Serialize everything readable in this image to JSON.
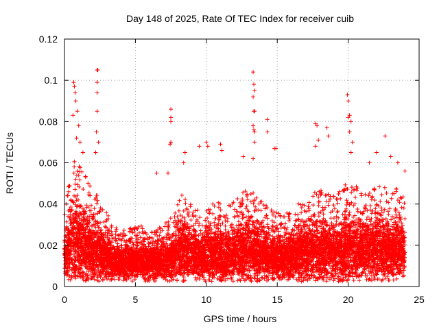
{
  "chart_data": {
    "type": "scatter",
    "title": "Day 148 of 2025, Rate Of TEC Index for receiver cuib",
    "xlabel": "GPS time / hours",
    "ylabel": "ROTI / TECUs",
    "xlim": [
      0,
      25
    ],
    "ylim": [
      0,
      0.12
    ],
    "xticks": [
      "0",
      "5",
      "10",
      "15",
      "20",
      "25"
    ],
    "xtick_values": [
      0,
      5,
      10,
      15,
      20,
      25
    ],
    "yticks": [
      "0",
      "0.02",
      "0.04",
      "0.06",
      "0.08",
      "0.1",
      "0.12"
    ],
    "ytick_values": [
      0,
      0.02,
      0.04,
      0.06,
      0.08,
      0.1,
      0.12
    ],
    "grid": true,
    "marker": "+",
    "color": "#ff0000",
    "series": [
      {
        "name": "ROTI",
        "envelope": {
          "x_hours": [
            0.0,
            0.5,
            1.0,
            1.5,
            2.0,
            2.5,
            3.0,
            3.5,
            4.0,
            4.5,
            5.0,
            5.5,
            6.0,
            6.5,
            7.0,
            7.5,
            8.0,
            8.5,
            9.0,
            9.5,
            10.0,
            10.5,
            11.0,
            11.5,
            12.0,
            12.5,
            13.0,
            13.5,
            14.0,
            14.5,
            15.0,
            15.5,
            16.0,
            16.5,
            17.0,
            17.5,
            18.0,
            18.5,
            19.0,
            19.5,
            20.0,
            20.5,
            21.0,
            21.5,
            22.0,
            22.5,
            23.0,
            23.5,
            24.0
          ],
          "typical_max": [
            0.035,
            0.055,
            0.06,
            0.05,
            0.045,
            0.04,
            0.033,
            0.028,
            0.026,
            0.027,
            0.027,
            0.028,
            0.027,
            0.027,
            0.028,
            0.032,
            0.038,
            0.045,
            0.038,
            0.034,
            0.035,
            0.038,
            0.038,
            0.037,
            0.04,
            0.042,
            0.045,
            0.042,
            0.038,
            0.035,
            0.034,
            0.033,
            0.035,
            0.038,
            0.04,
            0.045,
            0.045,
            0.043,
            0.042,
            0.045,
            0.048,
            0.046,
            0.044,
            0.045,
            0.046,
            0.045,
            0.044,
            0.045,
            0.04
          ],
          "typical_min": [
            0.007,
            0.006,
            0.005,
            0.005,
            0.005,
            0.005,
            0.005,
            0.005,
            0.005,
            0.005,
            0.005,
            0.005,
            0.005,
            0.005,
            0.005,
            0.005,
            0.005,
            0.005,
            0.005,
            0.005,
            0.005,
            0.005,
            0.005,
            0.005,
            0.005,
            0.005,
            0.005,
            0.005,
            0.005,
            0.005,
            0.005,
            0.005,
            0.005,
            0.005,
            0.005,
            0.005,
            0.005,
            0.005,
            0.005,
            0.005,
            0.005,
            0.005,
            0.005,
            0.005,
            0.005,
            0.005,
            0.005,
            0.005,
            0.006
          ]
        },
        "notable_points": [
          [
            0.65,
            0.099
          ],
          [
            0.7,
            0.097
          ],
          [
            0.75,
            0.094
          ],
          [
            0.8,
            0.09
          ],
          [
            0.9,
            0.085
          ],
          [
            0.6,
            0.083
          ],
          [
            1.0,
            0.078
          ],
          [
            0.85,
            0.072
          ],
          [
            1.1,
            0.07
          ],
          [
            1.3,
            0.065
          ],
          [
            2.3,
            0.105
          ],
          [
            2.35,
            0.105
          ],
          [
            2.3,
            0.099
          ],
          [
            2.3,
            0.094
          ],
          [
            2.3,
            0.085
          ],
          [
            2.25,
            0.075
          ],
          [
            2.4,
            0.07
          ],
          [
            2.2,
            0.065
          ],
          [
            7.5,
            0.086
          ],
          [
            7.5,
            0.082
          ],
          [
            7.5,
            0.08
          ],
          [
            7.5,
            0.07
          ],
          [
            7.45,
            0.069
          ],
          [
            6.5,
            0.055
          ],
          [
            7.3,
            0.055
          ],
          [
            8.5,
            0.065
          ],
          [
            8.4,
            0.06
          ],
          [
            9.5,
            0.068
          ],
          [
            10.0,
            0.07
          ],
          [
            10.1,
            0.068
          ],
          [
            11.0,
            0.069
          ],
          [
            11.1,
            0.066
          ],
          [
            12.6,
            0.063
          ],
          [
            13.3,
            0.104
          ],
          [
            13.35,
            0.098
          ],
          [
            13.4,
            0.095
          ],
          [
            13.3,
            0.092
          ],
          [
            13.35,
            0.085
          ],
          [
            13.4,
            0.085
          ],
          [
            13.3,
            0.078
          ],
          [
            13.35,
            0.076
          ],
          [
            13.4,
            0.075
          ],
          [
            13.4,
            0.07
          ],
          [
            13.3,
            0.062
          ],
          [
            14.3,
            0.081
          ],
          [
            14.3,
            0.075
          ],
          [
            14.8,
            0.067
          ],
          [
            14.9,
            0.067
          ],
          [
            17.7,
            0.079
          ],
          [
            17.8,
            0.078
          ],
          [
            17.9,
            0.071
          ],
          [
            17.7,
            0.068
          ],
          [
            18.5,
            0.077
          ],
          [
            18.6,
            0.073
          ],
          [
            19.95,
            0.093
          ],
          [
            20.0,
            0.09
          ],
          [
            20.1,
            0.083
          ],
          [
            20.0,
            0.082
          ],
          [
            20.2,
            0.08
          ],
          [
            20.1,
            0.075
          ],
          [
            20.3,
            0.07
          ],
          [
            20.2,
            0.065
          ],
          [
            21.5,
            0.06
          ],
          [
            22.0,
            0.065
          ],
          [
            22.6,
            0.073
          ],
          [
            23.0,
            0.063
          ],
          [
            23.5,
            0.06
          ],
          [
            24.0,
            0.056
          ]
        ]
      }
    ]
  }
}
